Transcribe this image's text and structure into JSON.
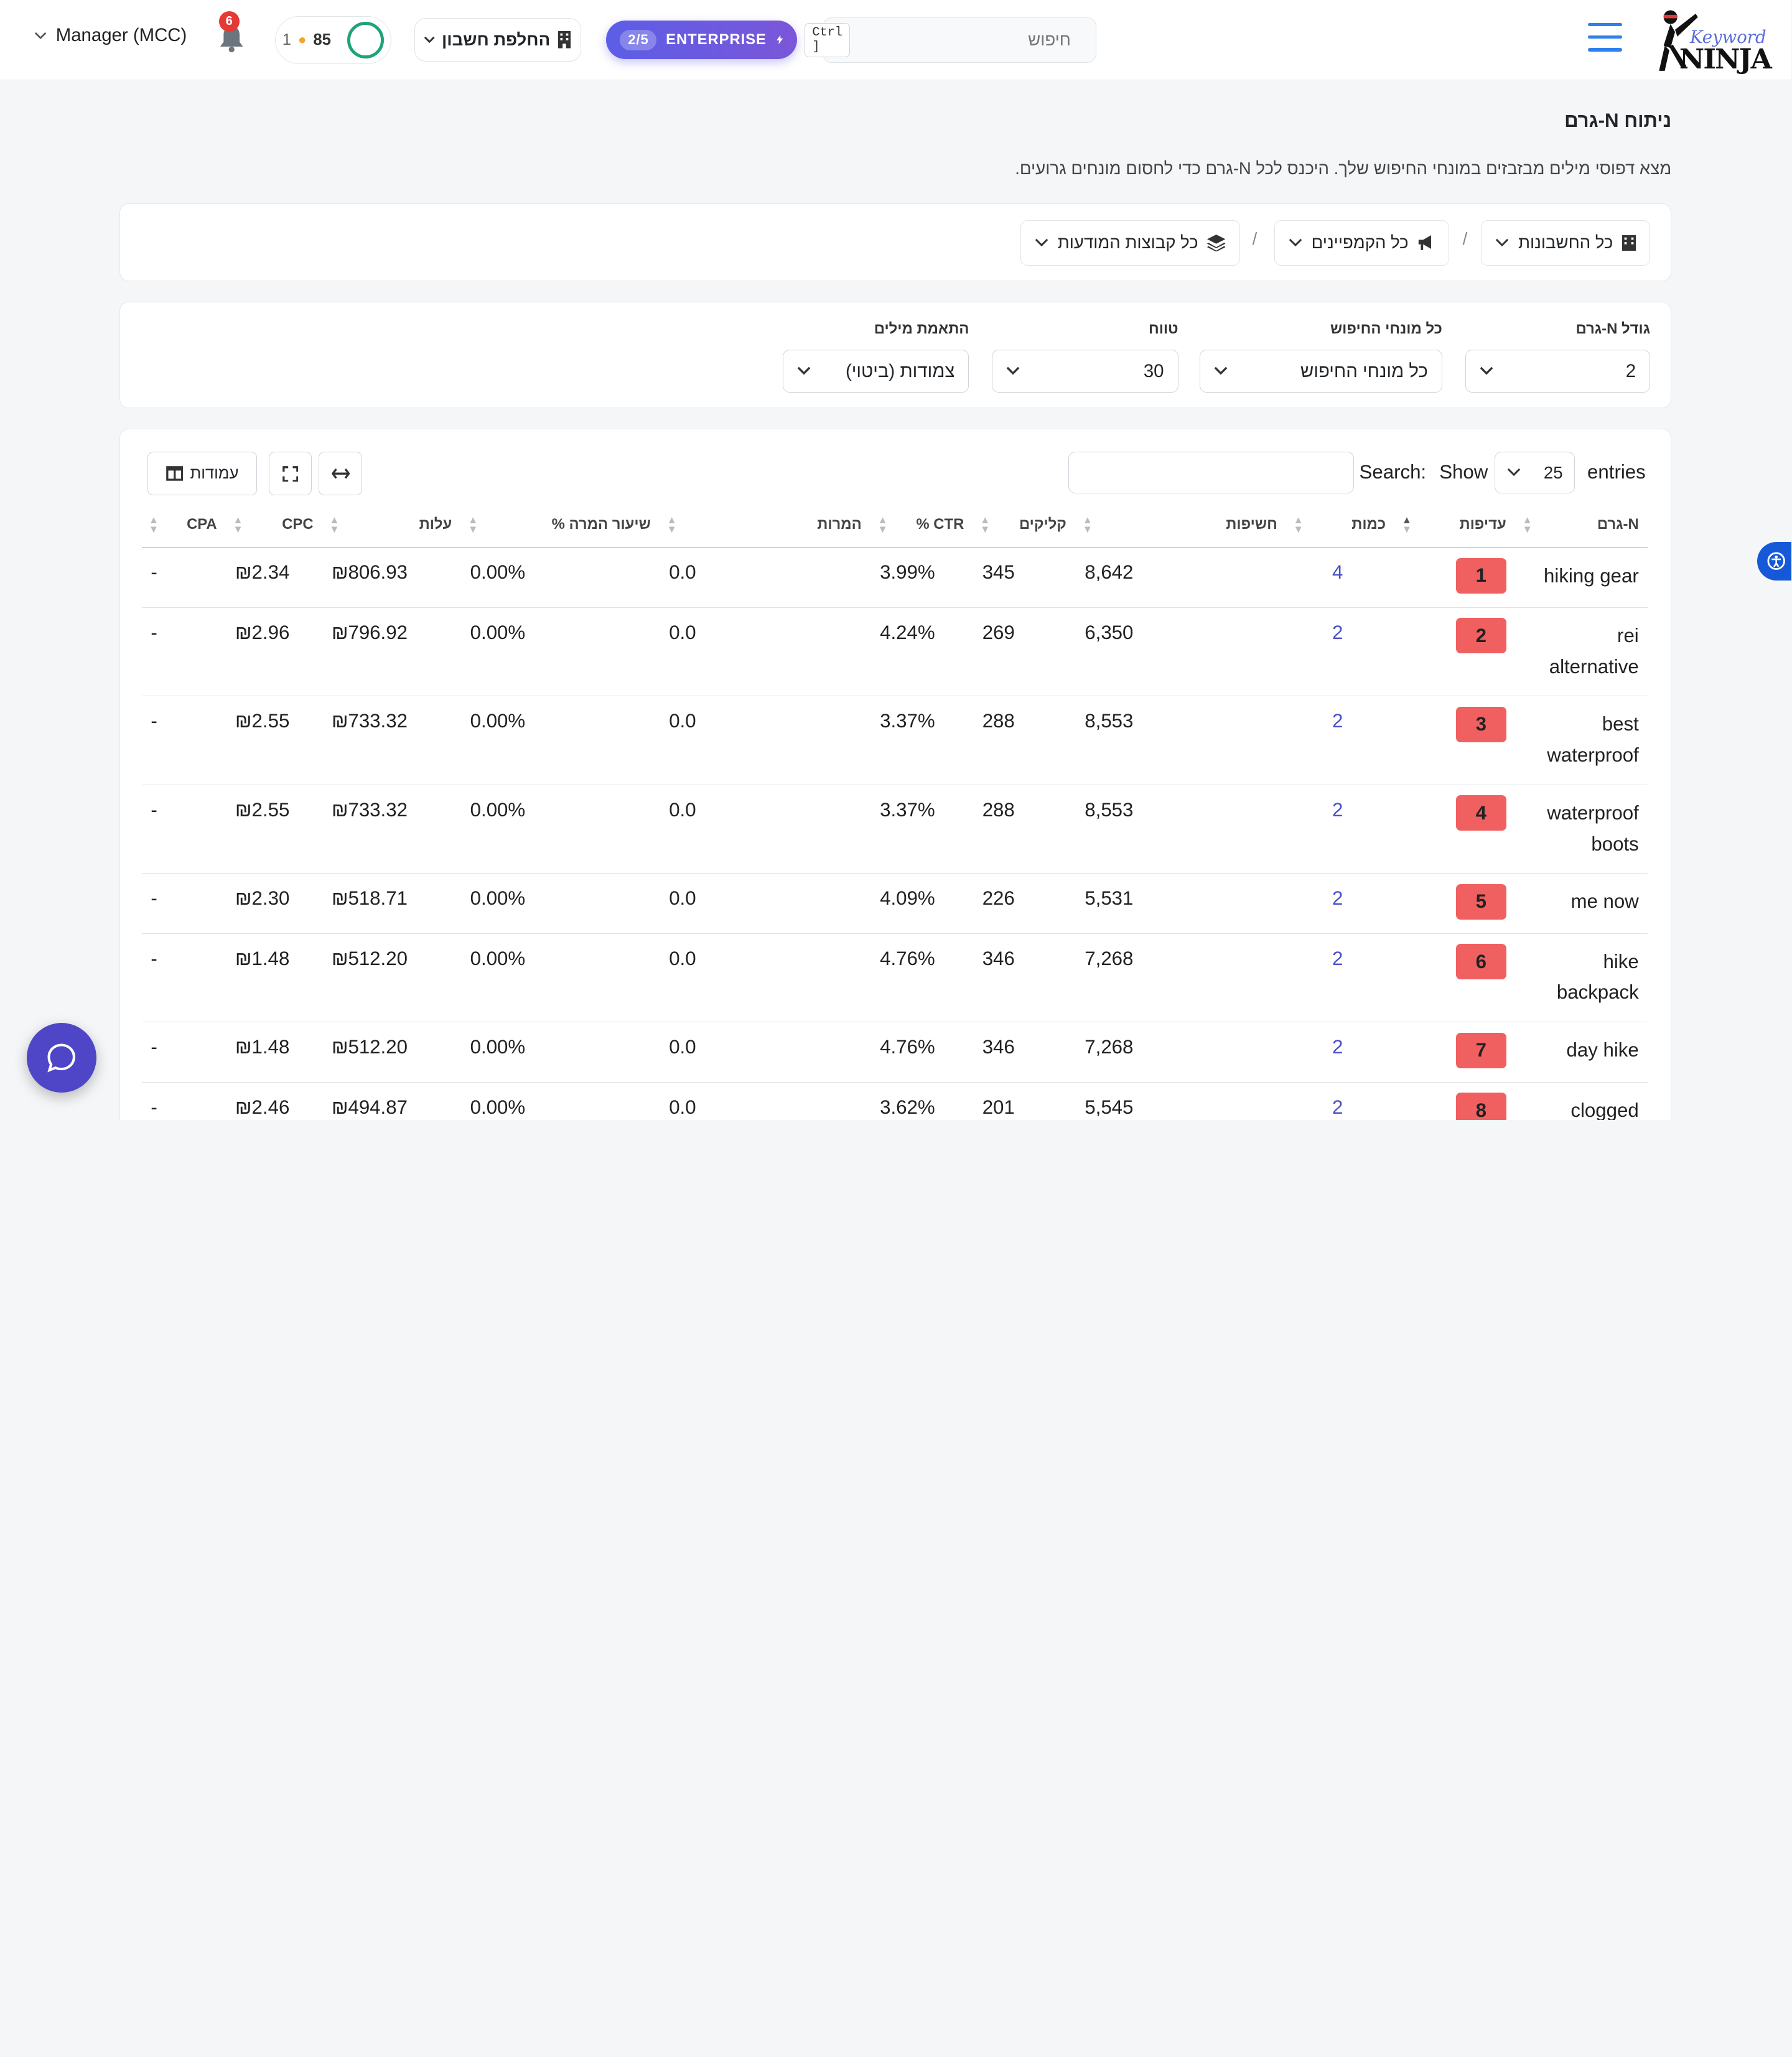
{
  "header": {
    "logo_keyword": "Keyword",
    "logo_ninja": "NINJA",
    "search_placeholder": "חיפוש",
    "search_shortcut": "Ctrl ]",
    "enterprise_badge": "2/5",
    "enterprise_label": "ENTERPRISE",
    "switch_account": "החלפת חשבון",
    "score": "85",
    "streak": "1",
    "notifications": "6",
    "account": "Manager (MCC)"
  },
  "page": {
    "title": "ניתוח N-גרם",
    "subtitle": "מצא דפוסי מילים מבזבזים במונחי החיפוש שלך. היכנס לכל N-גרם כדי לחסום מונחים גרועים."
  },
  "filters": {
    "accounts": "כל החשבונות",
    "campaigns": "כל הקמפיינים",
    "ad_groups": "כל קבוצות המודעות",
    "separator": "/"
  },
  "settings": {
    "ngram_size_label": "גודל N-גרם",
    "ngram_size_value": "2",
    "search_terms_label": "כל מונחי החיפוש",
    "search_terms_value": "כל מונחי החיפוש",
    "range_label": "טווח",
    "range_value": "30",
    "match_label": "התאמת מילים",
    "match_value": "צמודות (ביטוי)"
  },
  "table_tools": {
    "show_label": "Show",
    "entries_label": "entries",
    "page_size": "25",
    "search_label": "Search:",
    "columns_button": "עמודות"
  },
  "table": {
    "headers": [
      "N-גרם",
      "עדיפות",
      "כמות",
      "חשיפות",
      "קליקים",
      "CTR %",
      "המרות",
      "שיעור המרה %",
      "עלות",
      "CPC",
      "CPA"
    ],
    "rows": [
      {
        "ngram": "hiking gear",
        "rank": "1",
        "count": "4",
        "impressions": "8,642",
        "clicks": "345",
        "ctr": "3.99%",
        "conv": "0.0",
        "conv_rate": "0.00%",
        "cost": "₪806.93",
        "cpc": "₪2.34",
        "cpa": "-"
      },
      {
        "ngram": "rei alternative",
        "rank": "2",
        "count": "2",
        "impressions": "6,350",
        "clicks": "269",
        "ctr": "4.24%",
        "conv": "0.0",
        "conv_rate": "0.00%",
        "cost": "₪796.92",
        "cpc": "₪2.96",
        "cpa": "-"
      },
      {
        "ngram": "best waterproof",
        "rank": "3",
        "count": "2",
        "impressions": "8,553",
        "clicks": "288",
        "ctr": "3.37%",
        "conv": "0.0",
        "conv_rate": "0.00%",
        "cost": "₪733.32",
        "cpc": "₪2.55",
        "cpa": "-"
      },
      {
        "ngram": "waterproof boots",
        "rank": "4",
        "count": "2",
        "impressions": "8,553",
        "clicks": "288",
        "ctr": "3.37%",
        "conv": "0.0",
        "conv_rate": "0.00%",
        "cost": "₪733.32",
        "cpc": "₪2.55",
        "cpa": "-"
      },
      {
        "ngram": "me now",
        "rank": "5",
        "count": "2",
        "impressions": "5,531",
        "clicks": "226",
        "ctr": "4.09%",
        "conv": "0.0",
        "conv_rate": "0.00%",
        "cost": "₪518.71",
        "cpc": "₪2.30",
        "cpa": "-"
      },
      {
        "ngram": "hike backpack",
        "rank": "6",
        "count": "2",
        "impressions": "7,268",
        "clicks": "346",
        "ctr": "4.76%",
        "conv": "0.0",
        "conv_rate": "0.00%",
        "cost": "₪512.20",
        "cpc": "₪1.48",
        "cpa": "-"
      },
      {
        "ngram": "day hike",
        "rank": "7",
        "count": "2",
        "impressions": "7,268",
        "clicks": "346",
        "ctr": "4.76%",
        "conv": "0.0",
        "conv_rate": "0.00%",
        "cost": "₪512.20",
        "cpc": "₪1.48",
        "cpa": "-"
      },
      {
        "ngram": "clogged drain",
        "rank": "8",
        "count": "2",
        "impressions": "5,545",
        "clicks": "201",
        "ctr": "3.62%",
        "conv": "0.0",
        "conv_rate": "0.00%",
        "cost": "₪494.87",
        "cpc": "₪2.46",
        "cpa": "-"
      }
    ]
  },
  "colors": {
    "accent": "#2f80ed",
    "enterprise": "#5b5ee6",
    "rank_badge": "#f06060",
    "count_link": "#4a4fc7",
    "chat": "#4f46c7"
  }
}
